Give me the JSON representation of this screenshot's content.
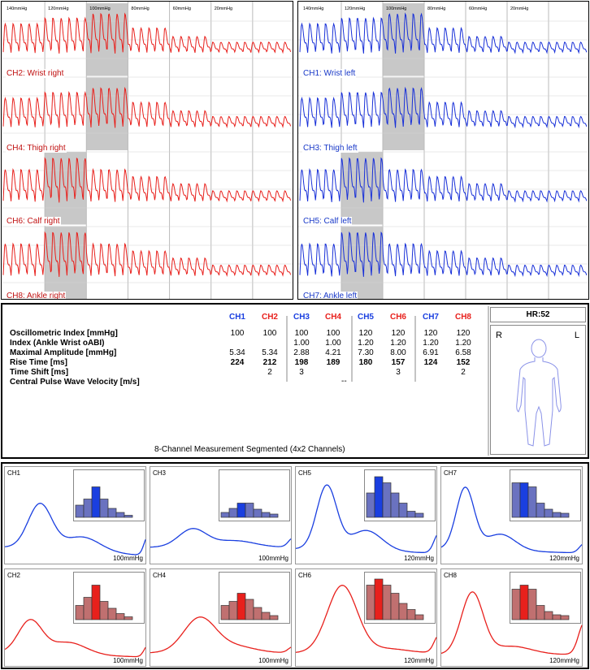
{
  "pressure_labels": [
    "140mmHg",
    "120mmHg",
    "100mmHg",
    "80mmHg",
    "60mmHg",
    "20mmHg"
  ],
  "wave_panels": [
    {
      "side": "right",
      "color": "#e8201c",
      "label_color": "#c01010",
      "channels": [
        {
          "label": "CH2: Wrist right",
          "highlight_segment": 2
        },
        {
          "label": "CH4: Thigh right",
          "highlight_segment": 2
        },
        {
          "label": "CH6: Calf right",
          "highlight_segment": 1
        },
        {
          "label": "CH8: Ankle right",
          "highlight_segment": 1
        }
      ]
    },
    {
      "side": "left",
      "color": "#1830d8",
      "label_color": "#1838c8",
      "channels": [
        {
          "label": "CH1: Wrist left",
          "highlight_segment": 2
        },
        {
          "label": "CH3: Thigh left",
          "highlight_segment": 2
        },
        {
          "label": "CH5: Calf left",
          "highlight_segment": 1
        },
        {
          "label": "CH7: Ankle left",
          "highlight_segment": 1
        }
      ]
    }
  ],
  "results": {
    "channels": [
      {
        "name": "CH1",
        "color": "#1a3fe0"
      },
      {
        "name": "CH2",
        "color": "#e8201c"
      },
      {
        "name": "CH3",
        "color": "#1a3fe0"
      },
      {
        "name": "CH4",
        "color": "#e8201c"
      },
      {
        "name": "CH5",
        "color": "#1a3fe0"
      },
      {
        "name": "CH6",
        "color": "#e8201c"
      },
      {
        "name": "CH7",
        "color": "#1a3fe0"
      },
      {
        "name": "CH8",
        "color": "#e8201c"
      }
    ],
    "rows": [
      {
        "label": "Oscillometric Index [mmHg]",
        "bold": false,
        "values": [
          "100",
          "100",
          "100",
          "100",
          "120",
          "120",
          "120",
          "120"
        ]
      },
      {
        "label": "Index (Ankle Wrist oABI)",
        "bold": false,
        "values": [
          "",
          "",
          "1.00",
          "1.00",
          "1.20",
          "1.20",
          "1.20",
          "1.20"
        ]
      },
      {
        "label": "Maximal Amplitude [mmHg]",
        "bold": false,
        "values": [
          "5.34",
          "5.34",
          "2.88",
          "4.21",
          "7.30",
          "8.00",
          "6.91",
          "6.58"
        ]
      },
      {
        "label": "Rise Time [ms]",
        "bold": true,
        "values": [
          "224",
          "212",
          "198",
          "189",
          "180",
          "157",
          "124",
          "152"
        ]
      },
      {
        "label": "Time Shift [ms]",
        "bold": false,
        "values": [
          "",
          "2",
          "3",
          "",
          "",
          "3",
          "",
          "2"
        ]
      },
      {
        "label": "Central Pulse Wave Velocity [m/s]",
        "bold": false,
        "values": []
      }
    ],
    "pwv_value": "--",
    "caption": "8-Channel Measurement Segmented (4x2 Channels)",
    "heart_rate": "HR:52",
    "side_right": "R",
    "side_left": "L"
  },
  "pulse_cells": [
    {
      "label": "CH1",
      "pressure": "100mmHg",
      "color": "#1a3fe0",
      "bar_color": "#6a72c0",
      "sel_color": "#1a3fe0",
      "bars": [
        0.3,
        0.45,
        0.75,
        0.45,
        0.22,
        0.12,
        0.05
      ],
      "sel": 2,
      "shape": "early"
    },
    {
      "label": "CH3",
      "pressure": "100mmHg",
      "color": "#1a3fe0",
      "bar_color": "#6a72c0",
      "sel_color": "#1a3fe0",
      "bars": [
        0.12,
        0.22,
        0.35,
        0.35,
        0.2,
        0.12,
        0.08
      ],
      "sel": 2,
      "shape": "flat"
    },
    {
      "label": "CH5",
      "pressure": "120mmHg",
      "color": "#1a3fe0",
      "bar_color": "#6a72c0",
      "sel_color": "#1a3fe0",
      "bars": [
        0.6,
        1.0,
        0.85,
        0.6,
        0.35,
        0.15,
        0.1
      ],
      "sel": 1,
      "shape": "peak"
    },
    {
      "label": "CH7",
      "pressure": "120mmHg",
      "color": "#1a3fe0",
      "bar_color": "#6a72c0",
      "sel_color": "#1a3fe0",
      "bars": [
        0.85,
        0.85,
        0.75,
        0.35,
        0.2,
        0.12,
        0.1
      ],
      "sel": 1,
      "shape": "peak_early"
    },
    {
      "label": "CH2",
      "pressure": "100mmHg",
      "color": "#e8201c",
      "bar_color": "#c07070",
      "sel_color": "#e8201c",
      "bars": [
        0.35,
        0.55,
        0.85,
        0.45,
        0.28,
        0.15,
        0.07
      ],
      "sel": 2,
      "shape": "early_low"
    },
    {
      "label": "CH4",
      "pressure": "100mmHg",
      "color": "#e8201c",
      "bar_color": "#c07070",
      "sel_color": "#e8201c",
      "bars": [
        0.35,
        0.45,
        0.65,
        0.5,
        0.3,
        0.18,
        0.1
      ],
      "sel": 2,
      "shape": "mid_low"
    },
    {
      "label": "CH6",
      "pressure": "120mmHg",
      "color": "#e8201c",
      "bar_color": "#c07070",
      "sel_color": "#e8201c",
      "bars": [
        0.85,
        1.0,
        0.85,
        0.65,
        0.4,
        0.25,
        0.12
      ],
      "sel": 1,
      "shape": "peak_red"
    },
    {
      "label": "CH8",
      "pressure": "120mmHg",
      "color": "#e8201c",
      "bar_color": "#c07070",
      "sel_color": "#e8201c",
      "bars": [
        0.75,
        0.85,
        0.75,
        0.35,
        0.2,
        0.12,
        0.1
      ],
      "sel": 1,
      "shape": "peak_red_early"
    }
  ]
}
